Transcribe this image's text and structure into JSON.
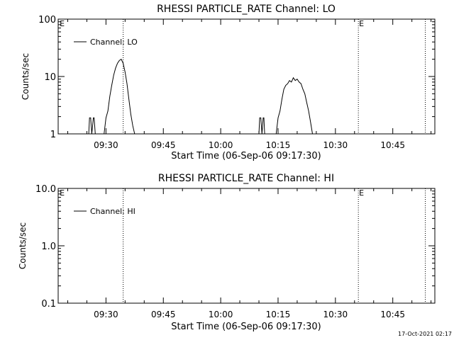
{
  "colors": {
    "background": "#ffffff",
    "foreground": "#000000"
  },
  "timestamp": "17-Oct-2021 02:17",
  "chart_data": [
    {
      "type": "line",
      "title": "RHESSI PARTICLE_RATE Channel: LO",
      "xlabel": "Start Time (06-Sep-06 09:17:30)",
      "ylabel": "Counts/sec",
      "x_unit": "minutes after 09:17:30",
      "xlim": [
        0,
        98.5
      ],
      "ylim": [
        1,
        100
      ],
      "yscale": "log",
      "xticks": [
        12.5,
        27.5,
        42.5,
        57.5,
        72.5,
        87.5
      ],
      "xtick_labels": [
        "09:30",
        "09:45",
        "10:00",
        "10:15",
        "10:30",
        "10:45"
      ],
      "yticks": [
        1,
        10,
        100
      ],
      "ytick_labels": [
        "1",
        "10",
        "100"
      ],
      "legend": {
        "label": "Channel: LO",
        "position": "top-left"
      },
      "markers": [
        {
          "x": 0.2,
          "label": "E"
        },
        {
          "x": 17.0,
          "label": ""
        },
        {
          "x": 78.5,
          "label": "E"
        },
        {
          "x": 96.0,
          "label": ""
        }
      ],
      "series": [
        {
          "name": "Channel: LO",
          "x": [
            8,
            8.2,
            8.5,
            8.8,
            9.2,
            9.4,
            9.7,
            10.0,
            12.0,
            12.5,
            13.0,
            13.5,
            14.0,
            14.5,
            15.0,
            15.5,
            16.0,
            16.5,
            17.0,
            17.5,
            18.0,
            18.5,
            19.0,
            19.5,
            20.0,
            20.5,
            52.5,
            52.7,
            53.0,
            53.3,
            53.6,
            53.8,
            54.0,
            54.2,
            57.0,
            57.5,
            58.0,
            58.5,
            59.0,
            59.5,
            60.0,
            60.5,
            61.0,
            61.5,
            62.0,
            62.5,
            63.0,
            63.5,
            64.0,
            64.5,
            65.0,
            65.5,
            66.0,
            66.5,
            67.0,
            67.5,
            68.0,
            68.5,
            69.0
          ],
          "values": [
            1.0,
            1.9,
            1.9,
            1.0,
            1.9,
            1.9,
            1.0,
            1.0,
            1.0,
            1.9,
            2.5,
            4.5,
            7.0,
            10.5,
            14.0,
            17.0,
            19.0,
            20.0,
            17.0,
            12.0,
            7.5,
            4.0,
            2.2,
            1.4,
            1.0,
            1.0,
            1.0,
            1.9,
            1.9,
            1.0,
            1.9,
            1.9,
            1.0,
            1.0,
            1.0,
            1.9,
            2.5,
            4.0,
            6.0,
            7.0,
            7.5,
            8.5,
            8.0,
            9.5,
            8.5,
            9.0,
            8.0,
            7.5,
            6.0,
            5.0,
            3.5,
            2.5,
            1.6,
            1.0,
            1.0,
            1.0,
            1.0,
            1.0,
            1.0
          ]
        }
      ]
    },
    {
      "type": "line",
      "title": "RHESSI PARTICLE_RATE Channel: HI",
      "xlabel": "Start Time (06-Sep-06 09:17:30)",
      "ylabel": "Counts/sec",
      "x_unit": "minutes after 09:17:30",
      "xlim": [
        0,
        98.5
      ],
      "ylim": [
        0.1,
        10
      ],
      "yscale": "log",
      "xticks": [
        12.5,
        27.5,
        42.5,
        57.5,
        72.5,
        87.5
      ],
      "xtick_labels": [
        "09:30",
        "09:45",
        "10:00",
        "10:15",
        "10:30",
        "10:45"
      ],
      "yticks": [
        0.1,
        1,
        10
      ],
      "ytick_labels": [
        "0.1",
        "1.0",
        "10.0"
      ],
      "legend": {
        "label": "Channel: HI",
        "position": "top-left"
      },
      "markers": [
        {
          "x": 0.2,
          "label": "E"
        },
        {
          "x": 17.0,
          "label": ""
        },
        {
          "x": 78.5,
          "label": "E"
        },
        {
          "x": 96.0,
          "label": ""
        }
      ],
      "series": [
        {
          "name": "Channel: HI",
          "x": [],
          "values": []
        }
      ]
    }
  ]
}
